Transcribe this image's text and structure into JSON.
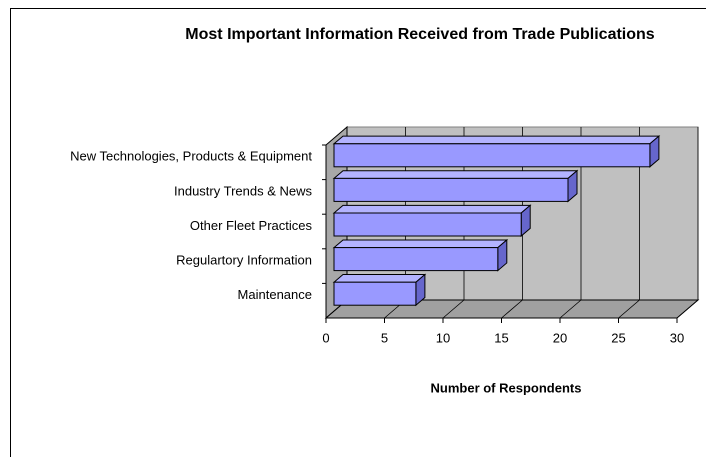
{
  "chart_data": {
    "type": "bar3d_horizontal",
    "title": "Most Important Information Received from Trade Publications",
    "x_label": "Number of Respondents",
    "categories": [
      "New Technologies, Products & Equipment",
      "Industry Trends & News",
      "Other Fleet Practices",
      "Regulartory Information",
      "Maintenance"
    ],
    "values": [
      27,
      20,
      16,
      14,
      7
    ],
    "color": "#9999ff",
    "xlim": [
      0,
      30
    ],
    "xticks": [
      0,
      5,
      10,
      15,
      20,
      25,
      30
    ],
    "grid": true
  }
}
